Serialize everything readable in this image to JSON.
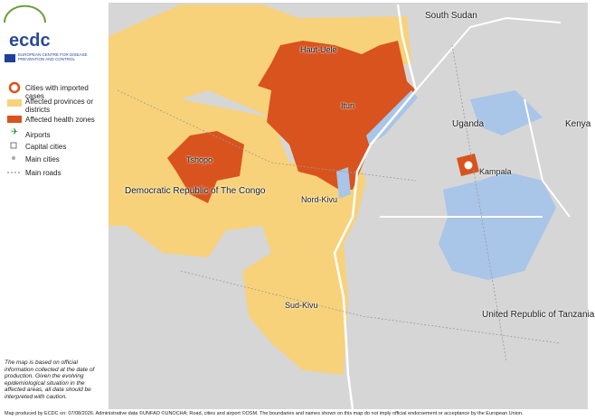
{
  "logo": {
    "name": "ecdc",
    "subtitle": "EUROPEAN CENTRE FOR DISEASE PREVENTION AND CONTROL"
  },
  "legend": [
    "Cities with imported cases",
    "Affected provinces or districts",
    "Affected health zones",
    "Airports",
    "Capital cities",
    "Main cities",
    "Main roads"
  ],
  "labels": {
    "south_sudan": "South Sudan",
    "haut_uele": "Haut-Uele",
    "ituri": "Ituri",
    "uganda": "Uganda",
    "kenya": "Kenya",
    "tshopo": "Tshopo",
    "kampala": "Kampala",
    "drc": "Democratic Republic of The Congo",
    "nord_kivu": "Nord-Kivu",
    "sud_kivu": "Sud-Kivu",
    "tanzania": "United Republic of Tanzania"
  },
  "note": "The map is based on official information collected at the date of production. Given the evolving epidemiological situation in the affected areas, all data should be interpreted with caution.",
  "footer": "Map produced by ECDC on: 07/08/2026. Administrative data ©UNFAO ©UNOCHA; Road, cities and airport ©OSM. The boundaries and names shown on this map do not imply official endorsement or acceptance by the European Union."
}
